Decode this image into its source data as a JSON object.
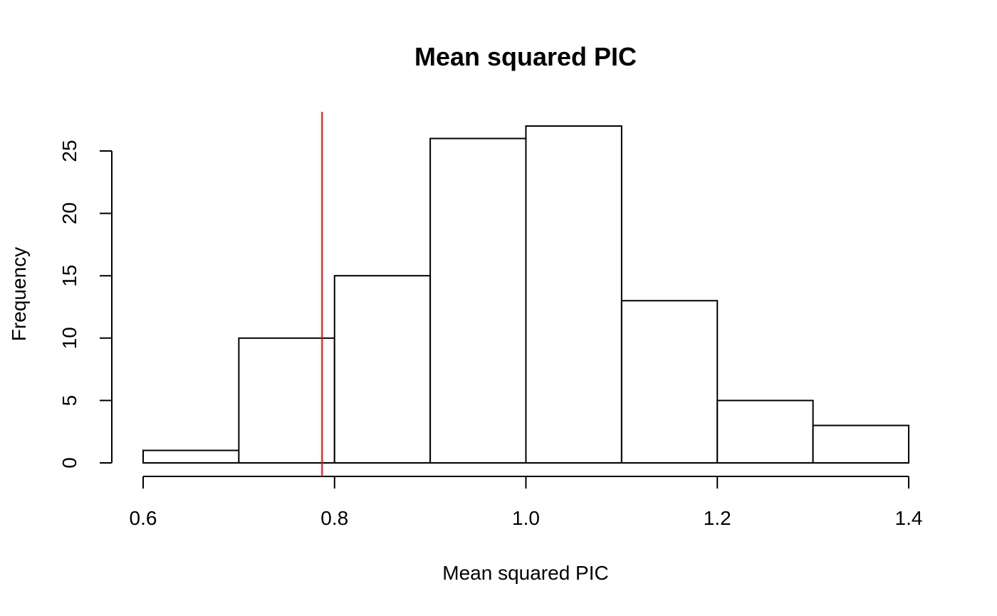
{
  "chart_data": {
    "type": "bar",
    "subtype": "histogram",
    "title": "Mean squared PIC",
    "xlabel": "Mean squared PIC",
    "ylabel": "Frequency",
    "bins": [
      {
        "x0": 0.6,
        "x1": 0.7,
        "count": 1
      },
      {
        "x0": 0.7,
        "x1": 0.8,
        "count": 10
      },
      {
        "x0": 0.8,
        "x1": 0.9,
        "count": 15
      },
      {
        "x0": 0.9,
        "x1": 1.0,
        "count": 26
      },
      {
        "x0": 1.0,
        "x1": 1.1,
        "count": 27
      },
      {
        "x0": 1.1,
        "x1": 1.2,
        "count": 13
      },
      {
        "x0": 1.2,
        "x1": 1.3,
        "count": 5
      },
      {
        "x0": 1.3,
        "x1": 1.4,
        "count": 3
      }
    ],
    "xlim": [
      0.6,
      1.4
    ],
    "ylim": [
      0,
      25
    ],
    "xticks": [
      "0.6",
      "0.8",
      "1.0",
      "1.2",
      "1.4"
    ],
    "yticks": [
      "0",
      "5",
      "10",
      "15",
      "20",
      "25"
    ],
    "reference_line": {
      "x": 0.787,
      "color": "#ff0000"
    },
    "grid": false,
    "legend": "none"
  }
}
